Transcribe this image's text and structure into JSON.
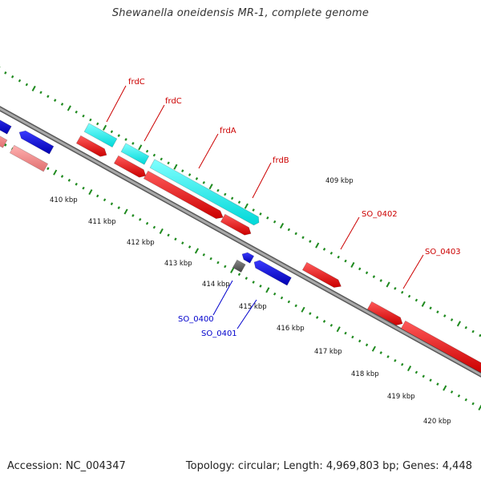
{
  "title": "Shewanella oneidensis MR-1, complete genome",
  "footer": {
    "accession": "Accession: NC_004347",
    "topology": "Topology: circular; Length: 4,969,803 bp; Genes: 4,448"
  },
  "colors": {
    "backbone": "#8a8a8a",
    "tick": "#1f8a1f",
    "forward_gene": "#ff0000",
    "reverse_gene": "#0000ff",
    "rna_gene": "#00ffff",
    "pseudo_gene": "#f08080",
    "other_gene": "#555555",
    "forward_label": "#cc0000",
    "reverse_label": "#0000cc"
  },
  "scale": {
    "unit": "kbp",
    "labels": [
      "409 kbp",
      "410 kbp",
      "411 kbp",
      "412 kbp",
      "413 kbp",
      "414 kbp",
      "415 kbp",
      "416 kbp",
      "417 kbp",
      "418 kbp",
      "419 kbp",
      "420 kbp"
    ]
  },
  "genes": [
    {
      "id": "frdC-1",
      "label": "frdC",
      "type": "rna",
      "strand": "forward"
    },
    {
      "id": "frdC-2",
      "label": "frdC",
      "type": "rna",
      "strand": "forward"
    },
    {
      "id": "frdA",
      "label": "frdA",
      "type": "rna",
      "strand": "forward"
    },
    {
      "id": "frdB",
      "label": "frdB",
      "type": "forward",
      "strand": "forward"
    },
    {
      "id": "SO_0402",
      "label": "SO_0402",
      "type": "forward",
      "strand": "forward"
    },
    {
      "id": "SO_0403",
      "label": "SO_0403",
      "type": "forward",
      "strand": "forward"
    },
    {
      "id": "SO_0400",
      "label": "SO_0400",
      "type": "reverse",
      "strand": "reverse"
    },
    {
      "id": "SO_0401",
      "label": "SO_0401",
      "type": "reverse",
      "strand": "reverse"
    }
  ]
}
